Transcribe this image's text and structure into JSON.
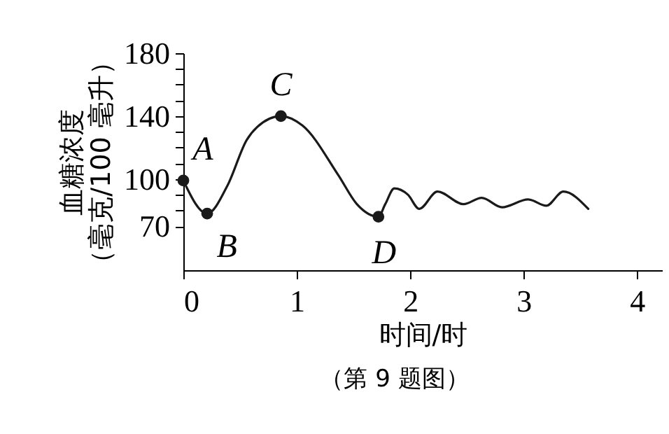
{
  "chart_data": {
    "type": "line",
    "xlabel": "时间/时",
    "ylabel": "血糖浓度（毫克/100 毫升）",
    "xlim": [
      0,
      4.22
    ],
    "ylim": [
      42,
      180
    ],
    "xticks": [
      0,
      1,
      2,
      3,
      4
    ],
    "yticks": [
      70,
      {
        "value": 80,
        "label": null
      },
      {
        "value": 90,
        "label": null
      },
      100,
      {
        "value": 110,
        "label": null
      },
      {
        "value": 120,
        "label": null
      },
      {
        "value": 130,
        "label": null
      },
      140,
      {
        "value": 150,
        "label": null
      },
      {
        "value": 160,
        "label": null
      },
      {
        "value": 170,
        "label": null
      },
      180
    ],
    "grid": false,
    "legend": false,
    "series": [
      {
        "type": "line",
        "color": "#1a1a1a",
        "marker": "none",
        "line_style": "solid",
        "x": [
          0,
          0.21,
          0.39,
          0.56,
          0.65,
          0.86,
          1.05,
          1.37,
          1.53,
          1.72,
          1.78,
          1.86,
          1.98,
          2.08,
          2.24,
          2.47,
          2.63,
          2.81,
          3.04,
          3.2,
          3.35,
          3.57
        ],
        "values": [
          99,
          78,
          96,
          125,
          133,
          140,
          134,
          102,
          84,
          76,
          84,
          94,
          90,
          81,
          92,
          84,
          88,
          82,
          87,
          83,
          92,
          81
        ]
      },
      {
        "type": "scatter",
        "color": "#1a1a1a",
        "marker": "circle",
        "x": [
          0,
          0.21,
          0.86,
          1.72
        ],
        "values": [
          99,
          78,
          140,
          76
        ]
      }
    ],
    "annotations": [
      {
        "text": "A",
        "x": 0,
        "y": 99
      },
      {
        "text": "B",
        "x": 0.21,
        "y": 78
      },
      {
        "text": "C",
        "x": 0.86,
        "y": 140
      },
      {
        "text": "D",
        "x": 1.72,
        "y": 76
      },
      "（第 9 题图）"
    ]
  }
}
